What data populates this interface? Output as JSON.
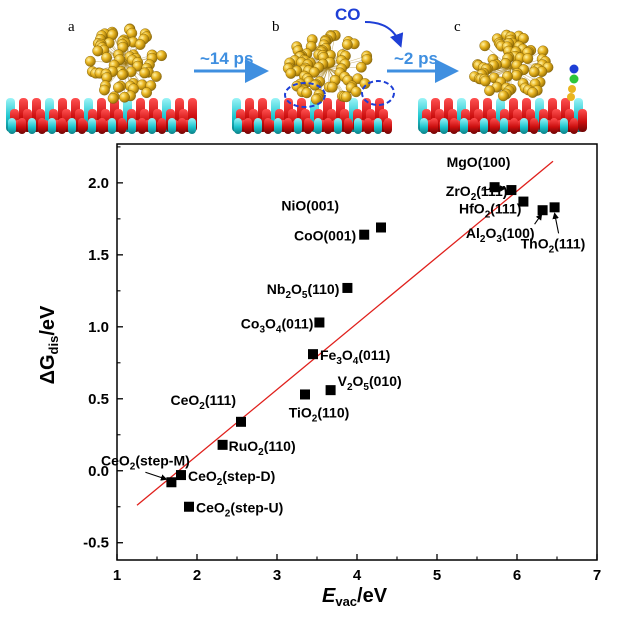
{
  "panels": {
    "letters": [
      "a",
      "b",
      "c"
    ],
    "arrow1_label": "~14 ps",
    "arrow2_label": "~2 ps",
    "co_label": "CO"
  },
  "colors": {
    "gold": "#e9b520",
    "oxygen_red": "#cc0f0f",
    "metal_cyan": "#1fc6cf",
    "arrow_blue": "#3f8fe0",
    "co_blue": "#1e3fd6",
    "fit_line": "#e0201c",
    "marker": "#000000"
  },
  "chart_data": {
    "type": "scatter",
    "xlabel": {
      "main": "E",
      "sub": "vac",
      "rest": "/eV"
    },
    "ylabel": {
      "main": "ΔG",
      "sub": "dis",
      "rest": "/eV"
    },
    "xlim": [
      1,
      7
    ],
    "ylim": [
      -0.62,
      2.27
    ],
    "xticks": [
      "1",
      "2",
      "3",
      "4",
      "5",
      "6",
      "7"
    ],
    "yticks": [
      "-0.5",
      "0.0",
      "0.5",
      "1.0",
      "1.5",
      "2.0"
    ],
    "grid": false,
    "fit_line": {
      "x": [
        1.25,
        6.45
      ],
      "y": [
        -0.24,
        2.15
      ]
    },
    "points": [
      {
        "x": 5.72,
        "y": 1.97,
        "label": [
          "MgO(100)"
        ]
      },
      {
        "x": 5.93,
        "y": 1.95,
        "label": [
          "ZrO",
          "2",
          "(111)"
        ]
      },
      {
        "x": 6.08,
        "y": 1.87,
        "label": [
          "HfO",
          "2",
          "(111)"
        ]
      },
      {
        "x": 6.32,
        "y": 1.81,
        "label": [
          "Al",
          "2",
          "O",
          "3",
          "(100)"
        ]
      },
      {
        "x": 6.47,
        "y": 1.83,
        "label": [
          "ThO",
          "2",
          "(111)"
        ]
      },
      {
        "x": 4.3,
        "y": 1.69,
        "label": [
          "NiO(001)"
        ]
      },
      {
        "x": 4.09,
        "y": 1.64,
        "label": [
          "CoO(001)"
        ]
      },
      {
        "x": 3.88,
        "y": 1.27,
        "label": [
          "Nb",
          "2",
          "O",
          "5",
          "(110)"
        ]
      },
      {
        "x": 3.53,
        "y": 1.03,
        "label": [
          "Co",
          "3",
          "O",
          "4",
          "(011)"
        ]
      },
      {
        "x": 3.45,
        "y": 0.81,
        "label": [
          "Fe",
          "3",
          "O",
          "4",
          "(011)"
        ]
      },
      {
        "x": 3.67,
        "y": 0.56,
        "label": [
          "V",
          "2",
          "O",
          "5",
          "(010)"
        ]
      },
      {
        "x": 3.35,
        "y": 0.53,
        "label": [
          "TiO",
          "2",
          "(110)"
        ]
      },
      {
        "x": 2.55,
        "y": 0.34,
        "label": [
          "CeO",
          "2",
          "(111)"
        ]
      },
      {
        "x": 2.32,
        "y": 0.18,
        "label": [
          "RuO",
          "2",
          "(110)"
        ]
      },
      {
        "x": 1.68,
        "y": -0.08,
        "label": [
          "CeO",
          "2",
          "(step-M)"
        ]
      },
      {
        "x": 1.8,
        "y": -0.03,
        "label": [
          "CeO",
          "2",
          "(step-D)"
        ]
      },
      {
        "x": 1.9,
        "y": -0.25,
        "label": [
          "CeO",
          "2",
          "(step-U)"
        ]
      }
    ]
  }
}
